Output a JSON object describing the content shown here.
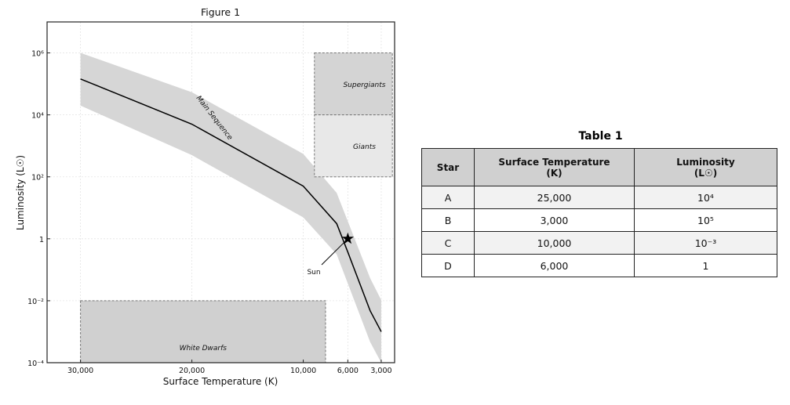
{
  "chart_data": {
    "type": "line",
    "title": "Figure 1",
    "xlabel": "Surface Temperature (K)",
    "ylabel": "Luminosity (L☉)",
    "xlim": [
      33000,
      1800
    ],
    "ylim_log10": [
      -4,
      7
    ],
    "grid": true,
    "x_ticks": [
      {
        "value": 30000,
        "label": "30,000"
      },
      {
        "value": 20000,
        "label": "20,000"
      },
      {
        "value": 10000,
        "label": "10,000"
      },
      {
        "value": 6000,
        "label": "6,000"
      },
      {
        "value": 3000,
        "label": "3,000"
      }
    ],
    "y_ticks": [
      {
        "log10": 6,
        "label": "10⁶"
      },
      {
        "log10": 4,
        "label": "10⁴"
      },
      {
        "log10": 2,
        "label": "10²"
      },
      {
        "log10": 0,
        "label": "1"
      },
      {
        "log10": -2,
        "label": "10⁻²"
      },
      {
        "log10": -4,
        "label": "10⁻⁴"
      }
    ],
    "main_sequence": {
      "label": "Main Sequence",
      "line": {
        "temps": [
          30000,
          20000,
          10000,
          7000,
          6000,
          4000,
          3000
        ],
        "log10_L": [
          5.16,
          3.7,
          1.7,
          0.49,
          -0.43,
          -2.32,
          -3.0
        ]
      },
      "band_upper": {
        "temps": [
          30000,
          20000,
          10000,
          7000,
          4000,
          3000
        ],
        "log10_L": [
          6.0,
          4.73,
          2.74,
          1.48,
          -1.27,
          -1.98
        ]
      },
      "band_lower": {
        "temps": [
          30000,
          20000,
          10000,
          7000,
          4000,
          3000
        ],
        "log10_L": [
          4.3,
          2.7,
          0.69,
          -0.5,
          -3.33,
          -4.0
        ]
      }
    },
    "regions": [
      {
        "label": "Supergiants",
        "temp_range": [
          9000,
          2000
        ],
        "log10_L_range": [
          4,
          6
        ],
        "color": "#d4d4d4"
      },
      {
        "label": "Giants",
        "temp_range": [
          9000,
          2000
        ],
        "log10_L_range": [
          2,
          4
        ],
        "color": "#e8e8e8"
      },
      {
        "label": "White Dwarfs",
        "temp_range": [
          30000,
          8000
        ],
        "log10_L_range": [
          -4,
          -2
        ],
        "color": "#d0d0d0"
      }
    ],
    "annotation": {
      "label": "Sun",
      "temp": 6000,
      "log10_L": 0
    }
  },
  "table": {
    "title": "Table 1",
    "headers": [
      {
        "line1": "Star",
        "line2": ""
      },
      {
        "line1": "Surface Temperature",
        "line2": "(K)"
      },
      {
        "line1": "Luminosity",
        "line2": "(L☉)"
      }
    ],
    "rows": [
      [
        "A",
        "25,000",
        "10⁴"
      ],
      [
        "B",
        "3,000",
        "10⁵"
      ],
      [
        "C",
        "10,000",
        "10⁻³"
      ],
      [
        "D",
        "6,000",
        "1"
      ]
    ]
  }
}
